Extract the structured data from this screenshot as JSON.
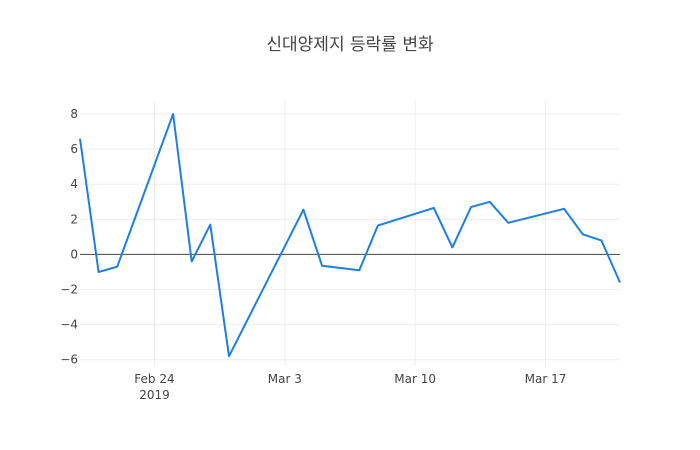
{
  "chart_data": {
    "type": "line",
    "title": "신대양제지 등락률 변화",
    "xlabel": "",
    "ylabel": "",
    "x": [
      "2019-02-20",
      "2019-02-21",
      "2019-02-22",
      "2019-02-25",
      "2019-02-26",
      "2019-02-27",
      "2019-02-28",
      "2019-03-04",
      "2019-03-05",
      "2019-03-07",
      "2019-03-08",
      "2019-03-11",
      "2019-03-12",
      "2019-03-13",
      "2019-03-14",
      "2019-03-15",
      "2019-03-18",
      "2019-03-19",
      "2019-03-20",
      "2019-03-21"
    ],
    "series": [
      {
        "name": "등락률",
        "color": "#1f7fe0",
        "values": [
          6.6,
          -1.0,
          -0.7,
          8.0,
          -0.4,
          1.7,
          -5.8,
          2.55,
          -0.65,
          -0.9,
          1.65,
          2.65,
          0.4,
          2.7,
          3.0,
          1.8,
          2.6,
          1.15,
          0.8,
          -1.6
        ]
      }
    ],
    "ylim": [
      -6.3,
      8.8
    ],
    "xlim": [
      "2019-02-20",
      "2019-03-21"
    ],
    "y_ticks": [
      -6,
      -4,
      -2,
      0,
      2,
      4,
      6,
      8
    ],
    "y_tick_labels": [
      "−6",
      "−4",
      "−2",
      "0",
      "2",
      "4",
      "6",
      "8"
    ],
    "x_ticks": [
      {
        "date": "2019-02-24",
        "label": "Feb 24",
        "sublabel": "2019"
      },
      {
        "date": "2019-03-03",
        "label": "Mar 3",
        "sublabel": ""
      },
      {
        "date": "2019-03-10",
        "label": "Mar 10",
        "sublabel": ""
      },
      {
        "date": "2019-03-17",
        "label": "Mar 17",
        "sublabel": ""
      }
    ],
    "grid": true,
    "zeroline": true,
    "legend": "none"
  }
}
